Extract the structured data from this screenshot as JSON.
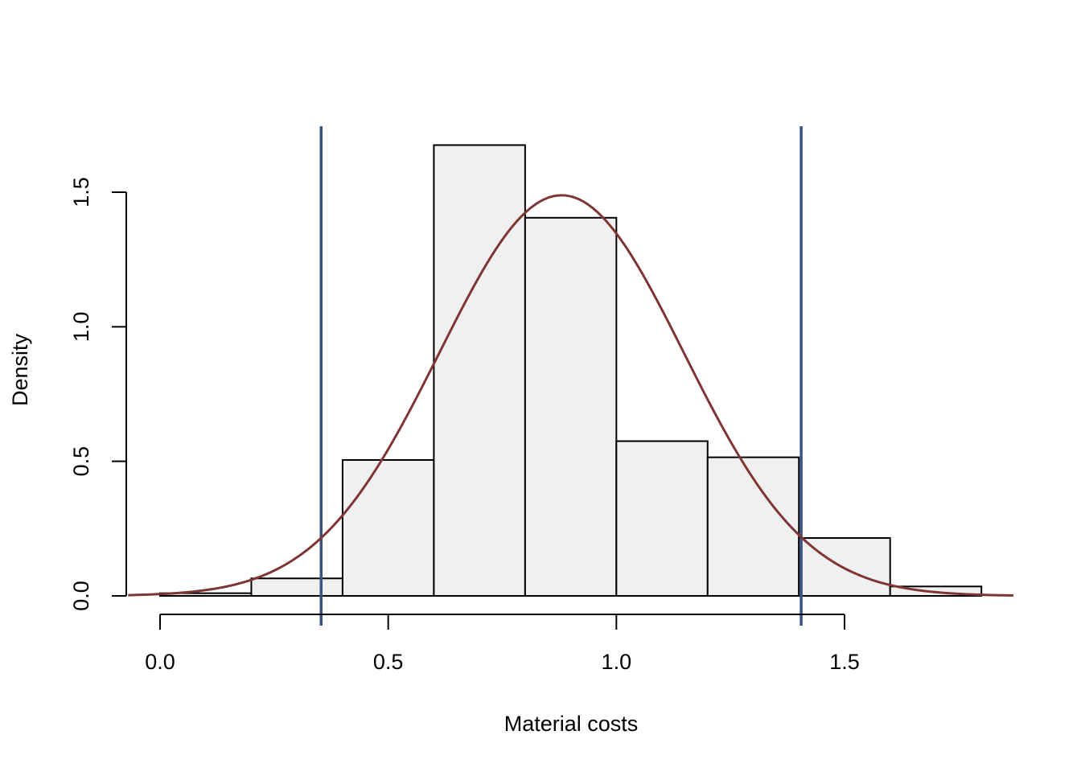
{
  "chart_data": {
    "type": "bar",
    "subtype": "histogram_with_density_curve",
    "title": "",
    "xlabel": "Material costs",
    "ylabel": "Density",
    "xlim": [
      -0.07,
      1.87
    ],
    "ylim": [
      0,
      1.75
    ],
    "x_ticks": [
      0.0,
      0.5,
      1.0,
      1.5
    ],
    "x_tick_labels": [
      "0.0",
      "0.5",
      "1.0",
      "1.5"
    ],
    "y_ticks": [
      0.0,
      0.5,
      1.0,
      1.5
    ],
    "y_tick_labels": [
      "0.0",
      "0.5",
      "1.0",
      "1.5"
    ],
    "grid": false,
    "legend": null,
    "bins": [
      {
        "from": 0.0,
        "to": 0.2,
        "density": 0.01
      },
      {
        "from": 0.2,
        "to": 0.4,
        "density": 0.065
      },
      {
        "from": 0.4,
        "to": 0.6,
        "density": 0.505
      },
      {
        "from": 0.6,
        "to": 0.8,
        "density": 1.675
      },
      {
        "from": 0.8,
        "to": 1.0,
        "density": 1.405
      },
      {
        "from": 1.0,
        "to": 1.2,
        "density": 0.575
      },
      {
        "from": 1.2,
        "to": 1.4,
        "density": 0.515
      },
      {
        "from": 1.4,
        "to": 1.6,
        "density": 0.215
      },
      {
        "from": 1.6,
        "to": 1.8,
        "density": 0.035
      }
    ],
    "categories": [
      "0.0-0.2",
      "0.2-0.4",
      "0.4-0.6",
      "0.6-0.8",
      "0.8-1.0",
      "1.0-1.2",
      "1.2-1.4",
      "1.4-1.6",
      "1.6-1.8"
    ],
    "values": [
      0.01,
      0.065,
      0.505,
      1.675,
      1.405,
      0.575,
      0.515,
      0.215,
      0.035
    ],
    "density_curve": {
      "distribution": "normal",
      "mean": 0.88,
      "sd": 0.268,
      "x_range": [
        -0.07,
        1.87
      ],
      "color": "#7F3535"
    },
    "vertical_lines": [
      {
        "x": 0.353,
        "color": "#3B5282"
      },
      {
        "x": 1.405,
        "color": "#3B5282"
      }
    ],
    "bar_fill": "#F0F0F0",
    "bar_border": "#000000"
  }
}
